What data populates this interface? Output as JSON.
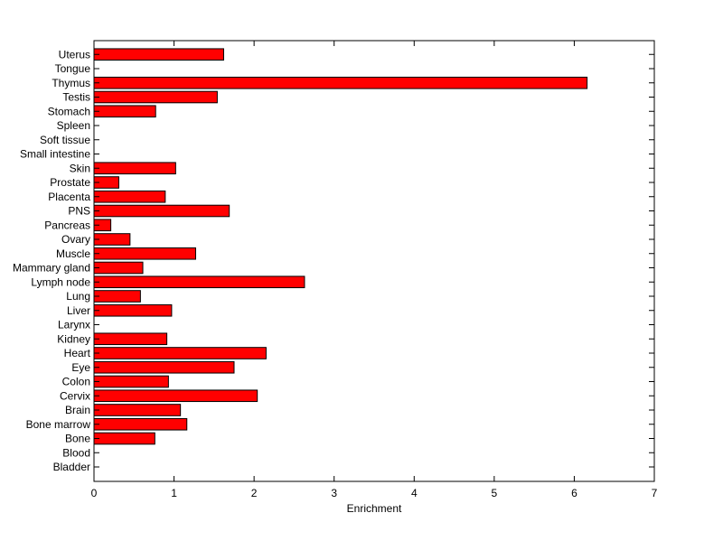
{
  "chart_data": {
    "type": "bar",
    "orientation": "horizontal",
    "title": "",
    "xlabel": "Enrichment",
    "ylabel": "",
    "xlim": [
      0,
      7
    ],
    "xticks": [
      "0",
      "1",
      "2",
      "3",
      "4",
      "5",
      "6",
      "7"
    ],
    "grid": false,
    "bar_color": "#ff0000",
    "edge_color": "#000000",
    "categories": [
      "Bladder",
      "Blood",
      "Bone",
      "Bone marrow",
      "Brain",
      "Cervix",
      "Colon",
      "Eye",
      "Heart",
      "Kidney",
      "Larynx",
      "Liver",
      "Lung",
      "Lymph node",
      "Mammary gland",
      "Muscle",
      "Ovary",
      "Pancreas",
      "PNS",
      "Placenta",
      "Prostate",
      "Skin",
      "Small intestine",
      "Soft tissue",
      "Spleen",
      "Stomach",
      "Testis",
      "Thymus",
      "Tongue",
      "Uterus"
    ],
    "values": [
      0,
      0,
      0.76,
      1.16,
      1.08,
      2.04,
      0.93,
      1.75,
      2.15,
      0.91,
      0,
      0.97,
      0.58,
      2.63,
      0.61,
      1.27,
      0.45,
      0.21,
      1.69,
      0.89,
      0.31,
      1.02,
      0,
      0,
      0,
      0.77,
      1.54,
      6.16,
      0,
      1.62
    ]
  }
}
